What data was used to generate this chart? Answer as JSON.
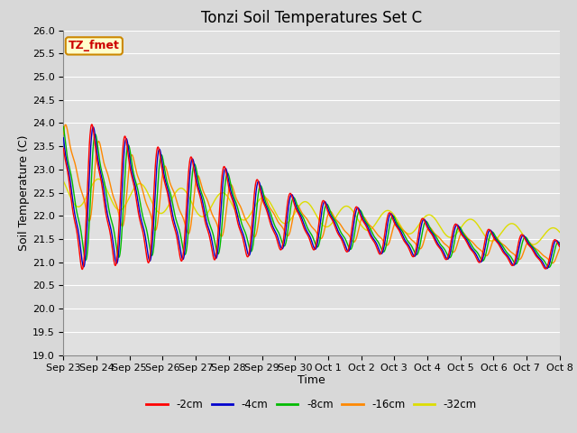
{
  "title": "Tonzi Soil Temperatures Set C",
  "xlabel": "Time",
  "ylabel": "Soil Temperature (C)",
  "ylim": [
    19.0,
    26.0
  ],
  "yticks": [
    19.0,
    19.5,
    20.0,
    20.5,
    21.0,
    21.5,
    22.0,
    22.5,
    23.0,
    23.5,
    24.0,
    24.5,
    25.0,
    25.5,
    26.0
  ],
  "xtick_labels": [
    "Sep 23",
    "Sep 24",
    "Sep 25",
    "Sep 26",
    "Sep 27",
    "Sep 28",
    "Sep 29",
    "Sep 30",
    "Oct 1",
    "Oct 2",
    "Oct 3",
    "Oct 4",
    "Oct 5",
    "Oct 6",
    "Oct 7",
    "Oct 8"
  ],
  "series_colors": [
    "#ff0000",
    "#0000cd",
    "#00bb00",
    "#ff8800",
    "#dddd00"
  ],
  "series_labels": [
    "-2cm",
    "-4cm",
    "-8cm",
    "-16cm",
    "-32cm"
  ],
  "plot_bg_color": "#e0e0e0",
  "fig_bg_color": "#d8d8d8",
  "annotation_text": "TZ_fmet",
  "annotation_color": "#cc0000",
  "annotation_bg": "#ffffcc",
  "annotation_edge": "#cc8800",
  "grid_color": "#ffffff",
  "title_fontsize": 12,
  "label_fontsize": 9,
  "tick_fontsize": 8
}
